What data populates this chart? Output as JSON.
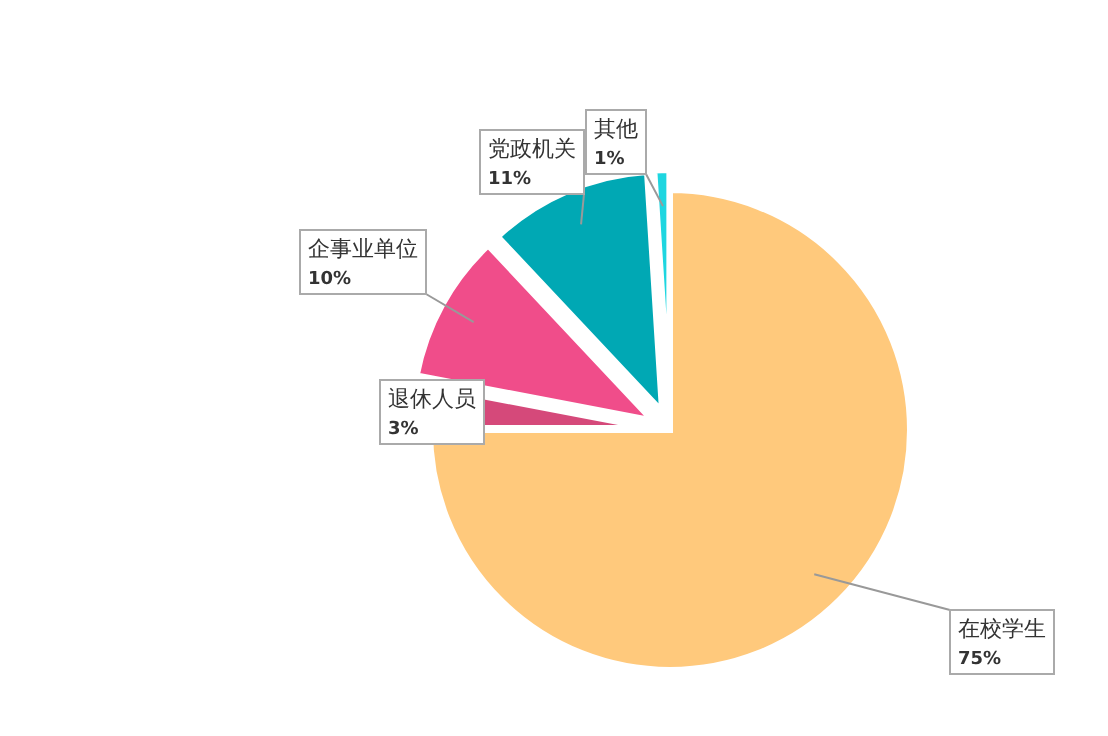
{
  "chart_data": {
    "type": "pie",
    "categories": [
      "在校学生",
      "退休人员",
      "企事业单位",
      "党政机关",
      "其他"
    ],
    "values": [
      75,
      3,
      10,
      11,
      1
    ],
    "value_labels": [
      "75%",
      "3%",
      "10%",
      "11%",
      "1%"
    ],
    "colors": [
      "#ffc97c",
      "#d5497a",
      "#f04d8a",
      "#00a8b4",
      "#1ed6e0"
    ],
    "legend": false
  }
}
